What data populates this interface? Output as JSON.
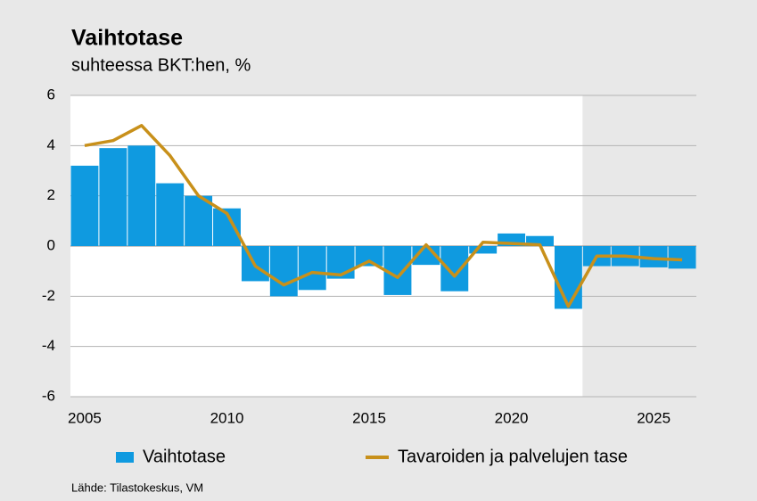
{
  "chart_data": {
    "type": "bar_line",
    "title": "Vaihtotase",
    "subtitle": "suhteessa BKT:hen, %",
    "source": "Lähde: Tilastokeskus, VM",
    "categories": [
      "2005",
      null,
      null,
      null,
      null,
      "2010",
      null,
      null,
      null,
      null,
      "2015",
      null,
      null,
      null,
      null,
      "2020",
      null,
      null,
      null,
      null,
      "2025",
      null
    ],
    "series": [
      {
        "name": "Vaihtotase",
        "type": "bar",
        "color": "#0f9ae0",
        "values": [
          3.2,
          3.9,
          4.0,
          2.5,
          2.0,
          1.5,
          -1.4,
          -2.0,
          -1.75,
          -1.3,
          -0.8,
          -1.95,
          -0.75,
          -1.8,
          -0.3,
          0.5,
          0.4,
          -2.5,
          -0.8,
          -0.8,
          -0.85,
          -0.9
        ]
      },
      {
        "name": "Tavaroiden ja palvelujen tase",
        "type": "line",
        "color": "#c8901a",
        "values": [
          4.0,
          4.2,
          4.8,
          3.6,
          2.0,
          1.3,
          -0.8,
          -1.55,
          -1.05,
          -1.15,
          -0.6,
          -1.25,
          0.05,
          -1.2,
          0.15,
          0.1,
          0.05,
          -2.4,
          -0.4,
          -0.4,
          -0.5,
          -0.55
        ]
      }
    ],
    "ylim": [
      -6,
      6
    ],
    "yticks": [
      -6,
      -4,
      -2,
      0,
      2,
      4,
      6
    ],
    "grid": true,
    "shaded_from_index": 18,
    "legend": "bottom"
  }
}
